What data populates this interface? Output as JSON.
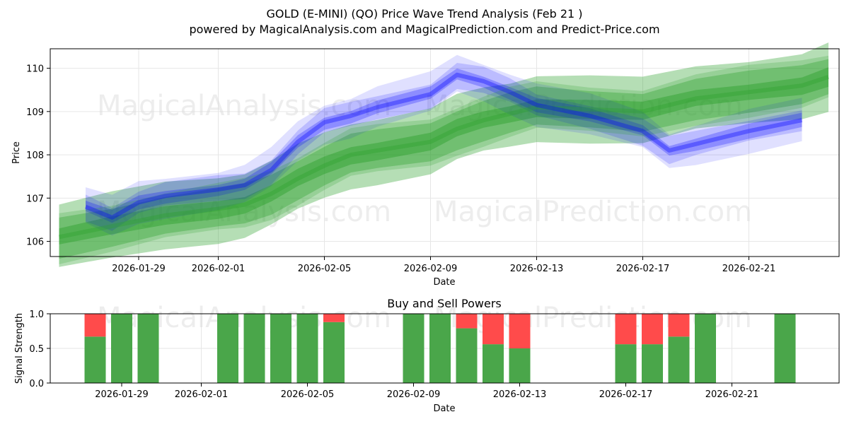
{
  "title": "GOLD (E-MINI) (QO) Price Wave Trend Analysis (Feb 21 )",
  "subtitle": "powered by MagicalAnalysis.com and MagicalPrediction.com and Predict-Price.com",
  "watermarks": [
    "MagicalAnalysis.com",
    "MagicalPrediction.com"
  ],
  "colors": {
    "blue": "#0000ff",
    "green": "#2ca02c",
    "buy": "#4aa64a",
    "sell": "#ff4b4b",
    "grid": "#e6e6e6"
  },
  "chart_data": [
    {
      "type": "area",
      "name": "price-wave",
      "title": "",
      "xlabel": "Date",
      "ylabel": "Price",
      "x_range": [
        "2026-01-26",
        "2026-02-24"
      ],
      "ylim": [
        105.65,
        110.45
      ],
      "x_ticks": [
        "2026-01-29",
        "2026-02-01",
        "2026-02-05",
        "2026-02-09",
        "2026-02-13",
        "2026-02-17",
        "2026-02-21"
      ],
      "y_ticks": [
        106,
        107,
        108,
        109,
        110
      ],
      "grid": true,
      "series": [
        {
          "name": "blue-wave-center",
          "color": "#0000ff",
          "x": [
            "2026-01-27",
            "2026-01-28",
            "2026-01-29",
            "2026-01-30",
            "2026-02-01",
            "2026-02-02",
            "2026-02-03",
            "2026-02-04",
            "2026-02-05",
            "2026-02-06",
            "2026-02-07",
            "2026-02-09",
            "2026-02-10",
            "2026-02-11",
            "2026-02-12",
            "2026-02-13",
            "2026-02-15",
            "2026-02-17",
            "2026-02-18",
            "2026-02-19",
            "2026-02-21",
            "2026-02-23"
          ],
          "values": [
            106.8,
            106.55,
            106.9,
            107.05,
            107.2,
            107.3,
            107.65,
            108.3,
            108.75,
            108.9,
            109.1,
            109.4,
            109.85,
            109.7,
            109.45,
            109.15,
            108.9,
            108.55,
            108.1,
            108.25,
            108.55,
            108.8
          ]
        },
        {
          "name": "green-wave-center",
          "color": "#2ca02c",
          "x": [
            "2026-01-26",
            "2026-01-28",
            "2026-01-30",
            "2026-02-01",
            "2026-02-02",
            "2026-02-03",
            "2026-02-04",
            "2026-02-05",
            "2026-02-06",
            "2026-02-07",
            "2026-02-09",
            "2026-02-10",
            "2026-02-11",
            "2026-02-12",
            "2026-02-13",
            "2026-02-15",
            "2026-02-17",
            "2026-02-19",
            "2026-02-21",
            "2026-02-23",
            "2026-02-24"
          ],
          "values": [
            106.1,
            106.35,
            106.6,
            106.75,
            106.85,
            107.1,
            107.45,
            107.75,
            108.0,
            108.1,
            108.3,
            108.6,
            108.8,
            108.95,
            109.1,
            109.05,
            109.0,
            109.3,
            109.45,
            109.6,
            109.8
          ]
        }
      ]
    },
    {
      "type": "bar",
      "name": "buy-sell-powers",
      "title": "Buy and Sell Powers",
      "xlabel": "Date",
      "ylabel": "Signal Strength",
      "ylim": [
        0,
        1
      ],
      "y_ticks": [
        "0.0",
        "0.5",
        "1.0"
      ],
      "x_ticks": [
        "2026-01-29",
        "2026-02-01",
        "2026-02-05",
        "2026-02-09",
        "2026-02-13",
        "2026-02-17",
        "2026-02-21"
      ],
      "categories": [
        "2026-01-28",
        "2026-01-29",
        "2026-01-30",
        "2026-02-02",
        "2026-02-03",
        "2026-02-04",
        "2026-02-05",
        "2026-02-06",
        "2026-02-09",
        "2026-02-10",
        "2026-02-11",
        "2026-02-12",
        "2026-02-13",
        "2026-02-17",
        "2026-02-18",
        "2026-02-19",
        "2026-02-20",
        "2026-02-23"
      ],
      "series": [
        {
          "name": "Buy",
          "color": "#4aa64a",
          "values": [
            0.67,
            1.0,
            1.0,
            1.0,
            1.0,
            1.0,
            1.0,
            0.88,
            1.0,
            1.0,
            0.79,
            0.56,
            0.5,
            0.56,
            0.56,
            0.67,
            1.0,
            1.0
          ]
        },
        {
          "name": "Sell",
          "color": "#ff4b4b",
          "values": [
            0.33,
            0.0,
            0.0,
            0.0,
            0.0,
            0.0,
            0.0,
            0.12,
            0.0,
            0.0,
            0.21,
            0.44,
            0.5,
            0.44,
            0.44,
            0.33,
            0.0,
            0.0
          ]
        }
      ]
    }
  ]
}
